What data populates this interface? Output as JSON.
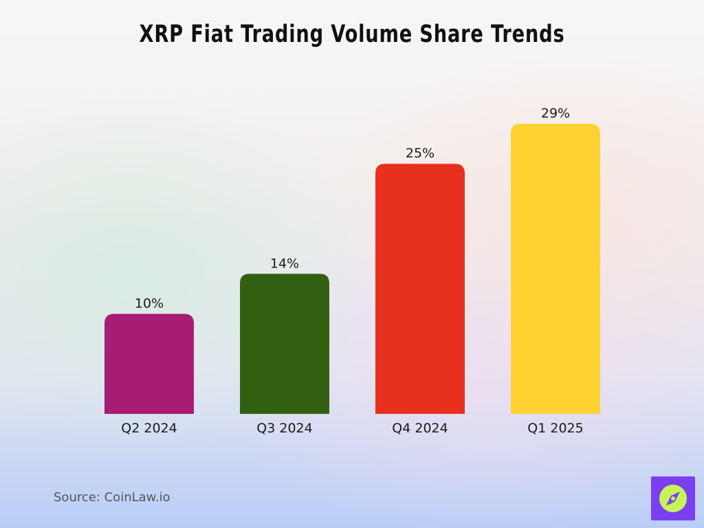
{
  "chart_data": {
    "type": "bar",
    "title": "XRP Fiat Trading Volume Share Trends",
    "categories": [
      "Q2 2024",
      "Q3 2024",
      "Q4 2024",
      "Q1 2025"
    ],
    "values": [
      10,
      14,
      25,
      29
    ],
    "value_labels": [
      "10%",
      "14%",
      "25%",
      "29%"
    ],
    "colors": [
      "#a71c74",
      "#336010",
      "#e8301f",
      "#ffd232"
    ],
    "ylim": [
      0,
      29
    ],
    "grid": false,
    "legend": "none"
  },
  "source": "Source: CoinLaw.io",
  "logo": {
    "icon": "compass-icon",
    "background": "#7b3ff2",
    "accent": "#c8f25a"
  }
}
